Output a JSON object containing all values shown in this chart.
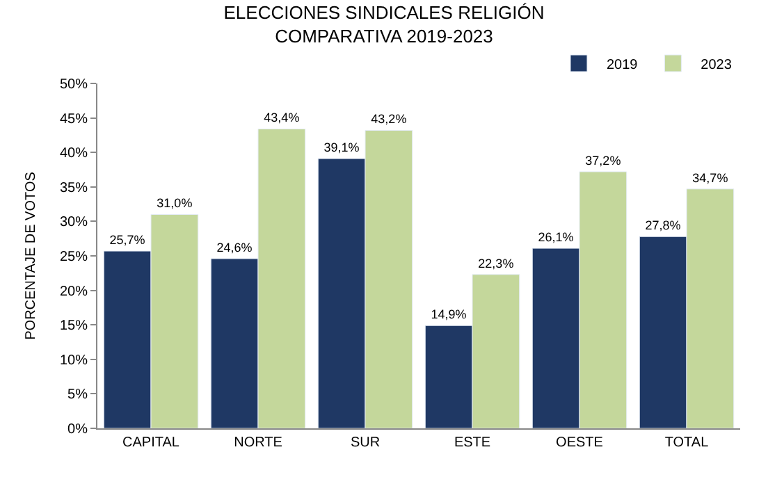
{
  "chart_data": {
    "type": "bar",
    "title": "ELECCIONES SINDICALES RELIGIÓN\nCOMPARATIVA 2019-2023",
    "ylabel": "PORCENTAJE DE VOTOS",
    "categories": [
      "CAPITAL",
      "NORTE",
      "SUR",
      "ESTE",
      "OESTE",
      "TOTAL"
    ],
    "series": [
      {
        "name": "2019",
        "color": "#1f3864",
        "values": [
          25.7,
          24.6,
          39.1,
          14.9,
          26.1,
          27.8
        ],
        "value_labels": [
          "25,7%",
          "24,6%",
          "39,1%",
          "14,9%",
          "26,1%",
          "27,8%"
        ]
      },
      {
        "name": "2023",
        "color": "#c4d79b",
        "values": [
          31.0,
          43.4,
          43.2,
          22.3,
          37.2,
          34.7
        ],
        "value_labels": [
          "31,0%",
          "43,4%",
          "43,2%",
          "22,3%",
          "37,2%",
          "34,7%"
        ]
      }
    ],
    "ylim": [
      0,
      50
    ],
    "yticks": [
      {
        "value": 0,
        "label": "0%"
      },
      {
        "value": 5,
        "label": "5%"
      },
      {
        "value": 10,
        "label": "10%"
      },
      {
        "value": 15,
        "label": "15%"
      },
      {
        "value": 20,
        "label": "20%"
      },
      {
        "value": 25,
        "label": "25%"
      },
      {
        "value": 30,
        "label": "30%"
      },
      {
        "value": 35,
        "label": "35%"
      },
      {
        "value": 40,
        "label": "40%"
      },
      {
        "value": 45,
        "label": "45%"
      },
      {
        "value": 50,
        "label": "50%"
      }
    ],
    "grid": false,
    "legend": "top right"
  }
}
